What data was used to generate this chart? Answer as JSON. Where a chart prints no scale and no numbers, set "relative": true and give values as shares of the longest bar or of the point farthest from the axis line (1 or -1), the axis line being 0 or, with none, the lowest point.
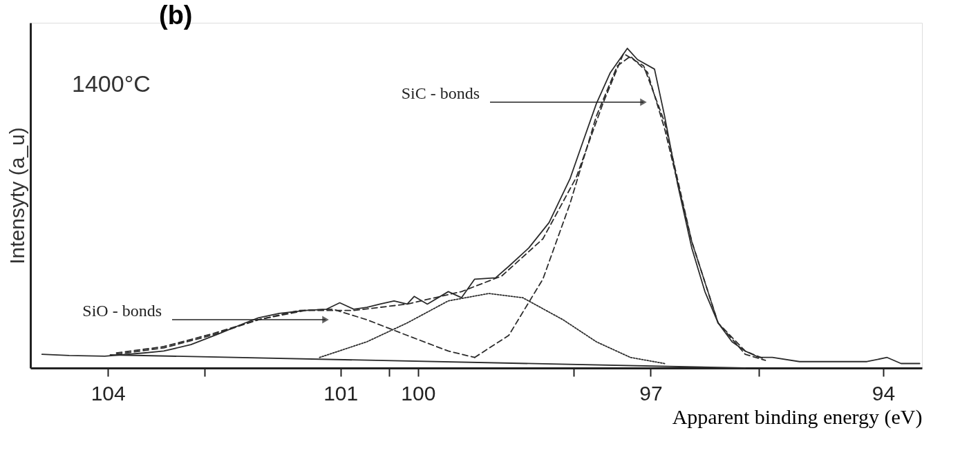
{
  "chart_data": {
    "type": "line",
    "title": "(b)",
    "xlabel": "Apparent binding energy  (eV)",
    "ylabel": "Intensyty (a_u)",
    "relative": true,
    "xlim": [
      105.0,
      93.5
    ],
    "xticks": [
      104,
      {
        "value": 102.75,
        "label": null
      },
      101,
      {
        "value": 100.37,
        "label": null
      },
      100,
      {
        "value": 97.99,
        "label": null
      },
      97,
      {
        "value": 95.6,
        "label": null
      },
      94
    ],
    "grid": false,
    "marker": "none",
    "annotations": [
      "1400°C",
      "SiC - bonds",
      "SiO - bonds"
    ],
    "series": [
      {
        "color": "#2b2b2b",
        "line_style": "solid",
        "x": [
          104.85,
          104.5,
          104.04,
          103.54,
          103.28,
          102.93,
          102.58,
          102.23,
          102.06,
          101.79,
          101.45,
          101.18,
          101.01,
          100.83,
          100.66,
          100.49,
          100.31,
          100.14,
          100.05,
          99.88,
          99.61,
          99.44,
          99.27,
          99.0,
          98.83,
          98.57,
          98.31,
          98.04,
          97.87,
          97.7,
          97.52,
          97.3,
          97.17,
          96.95,
          96.82,
          96.65,
          96.47,
          96.3,
          96.13,
          95.95,
          95.78,
          95.6,
          95.43,
          95.08,
          94.64,
          94.21,
          93.95,
          93.77,
          93.53
        ],
        "values": [
          0.043,
          0.039,
          0.037,
          0.047,
          0.053,
          0.073,
          0.106,
          0.141,
          0.157,
          0.171,
          0.18,
          0.184,
          0.204,
          0.184,
          0.19,
          0.2,
          0.21,
          0.2,
          0.224,
          0.2,
          0.239,
          0.22,
          0.278,
          0.282,
          0.318,
          0.376,
          0.455,
          0.592,
          0.71,
          0.827,
          0.924,
          1.0,
          0.965,
          0.935,
          0.788,
          0.573,
          0.376,
          0.239,
          0.141,
          0.082,
          0.053,
          0.033,
          0.033,
          0.02,
          0.02,
          0.02,
          0.033,
          0.014,
          0.014
        ]
      },
      {
        "color": "#2b2b2b",
        "line_style": "dashed",
        "x": [
          103.89,
          103.28,
          102.67,
          102.06,
          101.45,
          100.83,
          100.14,
          99.44,
          98.92,
          98.39,
          97.96,
          97.61,
          97.35,
          97.09,
          96.82,
          96.47,
          96.13,
          95.78,
          95.52
        ],
        "values": [
          0.047,
          0.067,
          0.106,
          0.151,
          0.18,
          0.18,
          0.2,
          0.239,
          0.288,
          0.404,
          0.596,
          0.831,
          0.984,
          0.945,
          0.769,
          0.396,
          0.141,
          0.053,
          0.027
        ]
      },
      {
        "color": "#2b2b2b",
        "line_style": "dashed",
        "x": [
          103.89,
          103.28,
          102.67,
          102.06,
          101.53,
          101.1,
          100.66,
          100.14,
          99.61,
          99.27
        ],
        "values": [
          0.043,
          0.063,
          0.102,
          0.151,
          0.18,
          0.184,
          0.151,
          0.102,
          0.053,
          0.033
        ]
      },
      {
        "color": "#2b2b2b",
        "line_style": "dotted",
        "x": [
          101.27,
          100.66,
          100.14,
          99.61,
          99.09,
          98.65,
          98.13,
          97.7,
          97.26,
          96.82
        ],
        "values": [
          0.033,
          0.082,
          0.141,
          0.21,
          0.233,
          0.22,
          0.151,
          0.082,
          0.033,
          0.014
        ]
      },
      {
        "color": "#2b2b2b",
        "line_style": "dashed",
        "x": [
          99.27,
          98.83,
          98.39,
          98.04,
          97.7,
          97.43,
          97.26,
          97.04,
          96.82,
          96.47,
          96.13,
          95.78,
          95.52
        ],
        "values": [
          0.033,
          0.102,
          0.278,
          0.514,
          0.788,
          0.945,
          0.975,
          0.925,
          0.749,
          0.396,
          0.141,
          0.043,
          0.024
        ]
      },
      {
        "color": "#2b2b2b",
        "line_style": "solid",
        "x": [
          103.97,
          95.78
        ],
        "values": [
          0.041,
          0.0
        ]
      }
    ]
  }
}
